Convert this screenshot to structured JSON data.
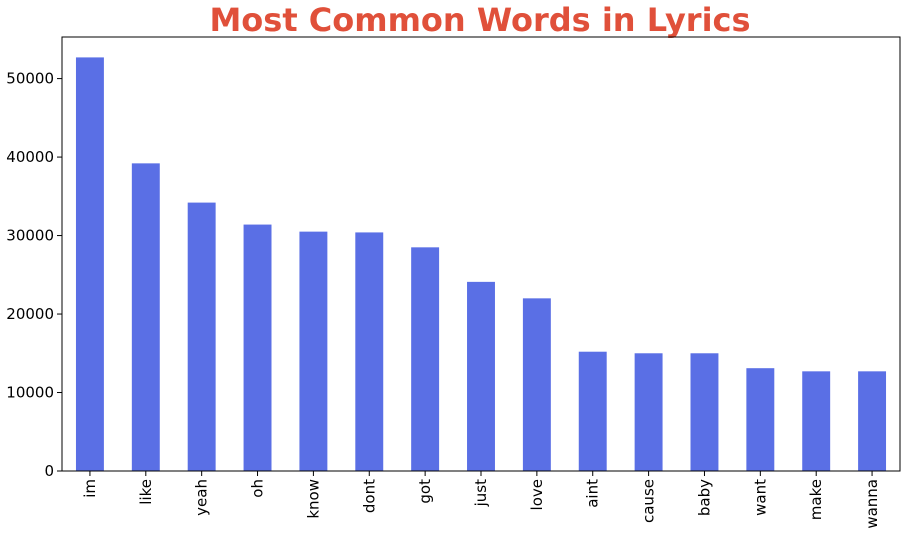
{
  "chart_data": {
    "type": "bar",
    "title": "Most Common Words in Lyrics",
    "xlabel": "",
    "ylabel": "",
    "categories": [
      "im",
      "like",
      "yeah",
      "oh",
      "know",
      "dont",
      "got",
      "just",
      "love",
      "aint",
      "cause",
      "baby",
      "want",
      "make",
      "wanna"
    ],
    "values": [
      52700,
      39200,
      34200,
      31400,
      30500,
      30400,
      28500,
      24100,
      22000,
      15200,
      15000,
      15000,
      13100,
      12700,
      12700
    ],
    "ylim": [
      0,
      55300
    ],
    "yticks": [
      0,
      10000,
      20000,
      30000,
      40000,
      50000
    ],
    "grid": false,
    "legend": "none"
  },
  "colors": {
    "bar": "#5a6fe5",
    "title": "#e0503a",
    "axis": "#000000"
  }
}
